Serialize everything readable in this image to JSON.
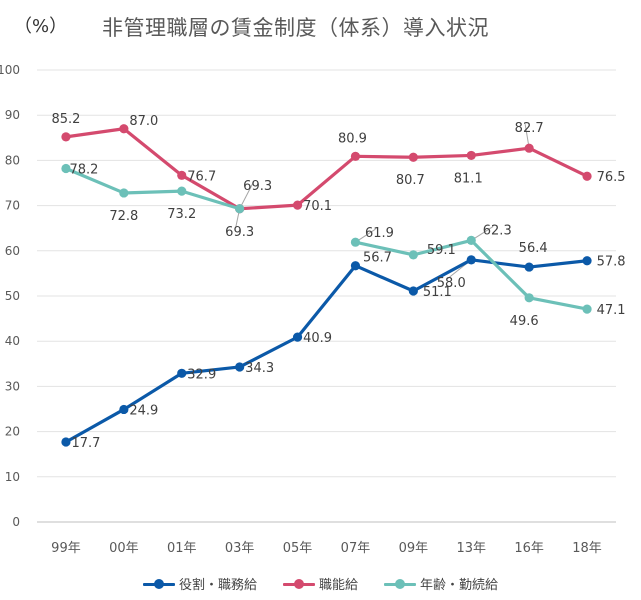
{
  "chart_data": {
    "type": "line",
    "title": "非管理職層の賃金制度（体系）導入状況",
    "ylabel": "（%）",
    "xlabel": "",
    "categories": [
      "99年",
      "00年",
      "01年",
      "03年",
      "05年",
      "07年",
      "09年",
      "13年",
      "16年",
      "18年"
    ],
    "ylim": [
      0,
      100
    ],
    "yticks": [
      0,
      10,
      20,
      30,
      40,
      50,
      60,
      70,
      80,
      90,
      100
    ],
    "grid": true,
    "legend_position": "bottom",
    "series": [
      {
        "name": "役割・職務給",
        "color": "#0b59a8",
        "values": [
          17.7,
          24.9,
          32.9,
          34.3,
          40.9,
          56.7,
          51.1,
          58.0,
          56.4,
          57.8
        ]
      },
      {
        "name": "職能給",
        "color": "#d44a6e",
        "values": [
          85.2,
          87.0,
          76.7,
          69.3,
          70.1,
          80.9,
          80.7,
          81.1,
          82.7,
          76.5
        ]
      },
      {
        "name": "年齢・勤続給",
        "color": "#6cc0b8",
        "values": [
          78.2,
          72.8,
          73.2,
          69.3,
          null,
          61.9,
          59.1,
          62.3,
          49.6,
          47.1
        ]
      }
    ]
  }
}
